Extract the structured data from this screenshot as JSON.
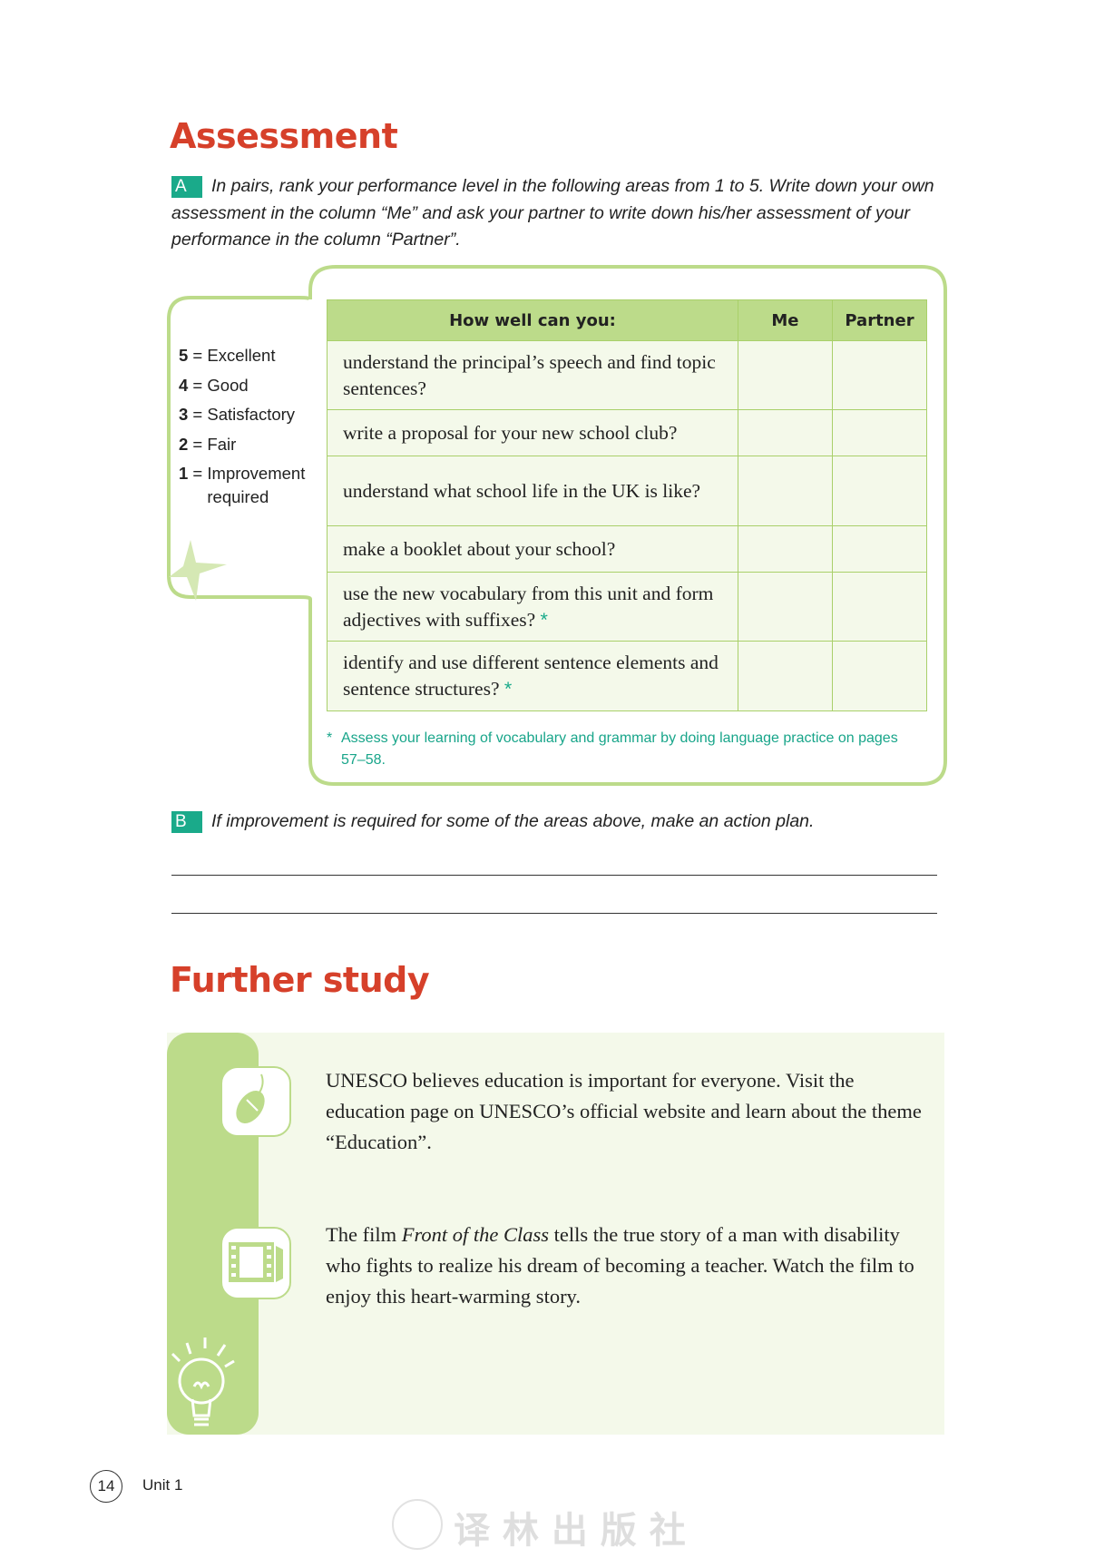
{
  "assessment": {
    "title": "Assessment",
    "part_a": {
      "badge": "A",
      "instruction": "In pairs, rank your performance level in the following areas from 1 to 5. Write down your own assessment in the column “Me” and ask your partner to write down his/her assessment of your performance in the column “Partner”."
    },
    "legend": [
      {
        "num": "5",
        "label": "Excellent"
      },
      {
        "num": "4",
        "label": "Good"
      },
      {
        "num": "3",
        "label": "Satisfactory"
      },
      {
        "num": "2",
        "label": "Fair"
      },
      {
        "num": "1",
        "label": "Improvement required"
      }
    ],
    "table": {
      "headers": [
        "How well can you:",
        "Me",
        "Partner"
      ],
      "rows": [
        {
          "text": "understand the principal’s speech and find topic sentences?",
          "star": ""
        },
        {
          "text": "write a proposal for your new school club?",
          "star": ""
        },
        {
          "text": "understand what school life in the UK is like?",
          "star": ""
        },
        {
          "text": "make a booklet about your school?",
          "star": ""
        },
        {
          "text": "use the new vocabulary from this unit and form adjectives with suffixes?",
          "star": "*"
        },
        {
          "text": "identify and use different sentence elements and sentence structures?",
          "star": "*"
        }
      ]
    },
    "footnote": {
      "star": "*",
      "text": "Assess your learning of vocabulary and grammar by doing language practice on pages 57–58."
    },
    "part_b": {
      "badge": "B",
      "instruction": "If improvement is required for some of the areas above, make an action plan."
    }
  },
  "further_study": {
    "title": "Further study",
    "items": [
      {
        "icon": "mouse-icon",
        "text": "UNESCO believes education is important for everyone. Visit the education page on UNESCO’s official website and learn about the theme “Education”."
      },
      {
        "icon": "film-icon",
        "text_before": "The film ",
        "title": "Front of the Class",
        "text_after": " tells the true story of a man with disability who fights to realize his dream of becoming a teacher. Watch the film to enjoy this heart-warming story."
      }
    ]
  },
  "footer": {
    "page_number": "14",
    "unit": "Unit 1",
    "watermark": "译 林 出 版 社"
  },
  "colors": {
    "heading": "#d6402a",
    "badge": "#1aaa8a",
    "green": "#bcdb8a",
    "panel": "#f4f9ea"
  }
}
